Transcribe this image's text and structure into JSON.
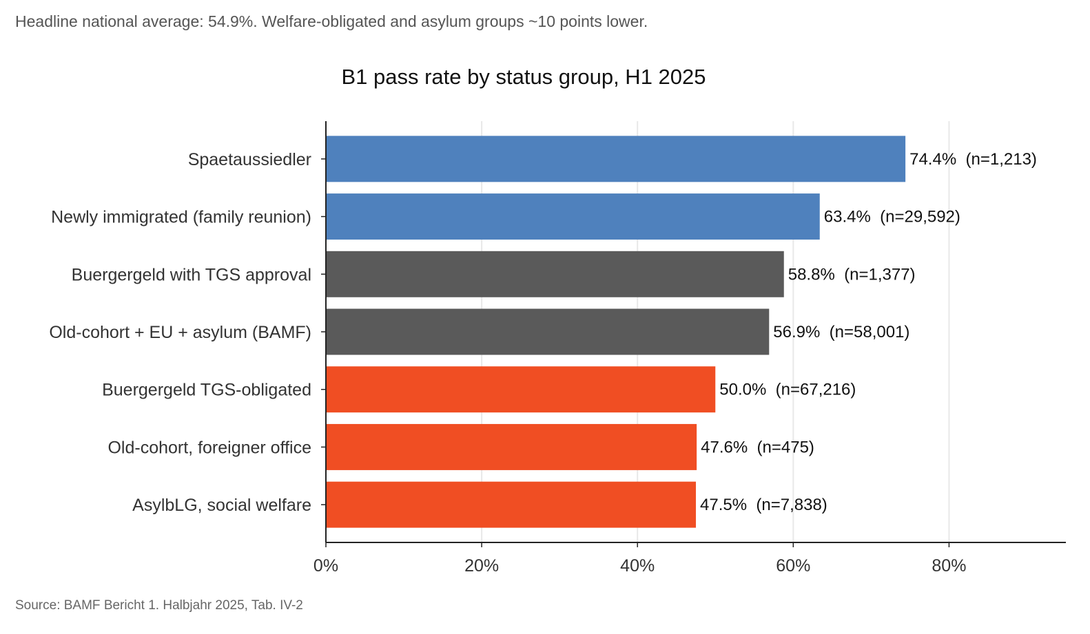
{
  "subtitle": "Headline national average: 54.9%. Welfare-obligated and asylum groups ~10 points lower.",
  "source": "Source: BAMF Bericht 1. Halbjahr 2025, Tab. IV-2",
  "colors": {
    "higher": "#4f81bd",
    "middle": "#5a5a5a",
    "lower": "#f04e23",
    "grid": "#e8e8e8",
    "axis": "#222222"
  },
  "chart_data": {
    "type": "bar",
    "orientation": "horizontal",
    "title": "B1 pass rate by status group, H1 2025",
    "xlabel": "",
    "ylabel": "",
    "xlim": [
      0,
      95
    ],
    "x_ticks": [
      0,
      20,
      40,
      60,
      80
    ],
    "x_tick_labels": [
      "0%",
      "20%",
      "40%",
      "60%",
      "80%"
    ],
    "grid": "vertical",
    "categories": [
      "Spaetaussiedler",
      "Newly immigrated (family reunion)",
      "Buergergeld with TGS approval",
      "Old-cohort + EU + asylum (BAMF)",
      "Buergergeld TGS-obligated",
      "Old-cohort, foreigner office",
      "AsylbLG, social welfare"
    ],
    "values": [
      74.4,
      63.4,
      58.8,
      56.9,
      50.0,
      47.6,
      47.5
    ],
    "groups": [
      "higher",
      "higher",
      "middle",
      "middle",
      "lower",
      "lower",
      "lower"
    ],
    "data_labels": [
      "74.4%  (n=1,213)",
      "63.4%  (n=29,592)",
      "58.8%  (n=1,377)",
      "56.9%  (n=58,001)",
      "50.0%  (n=67,216)",
      "47.6%  (n=475)",
      "47.5%  (n=7,838)"
    ]
  }
}
